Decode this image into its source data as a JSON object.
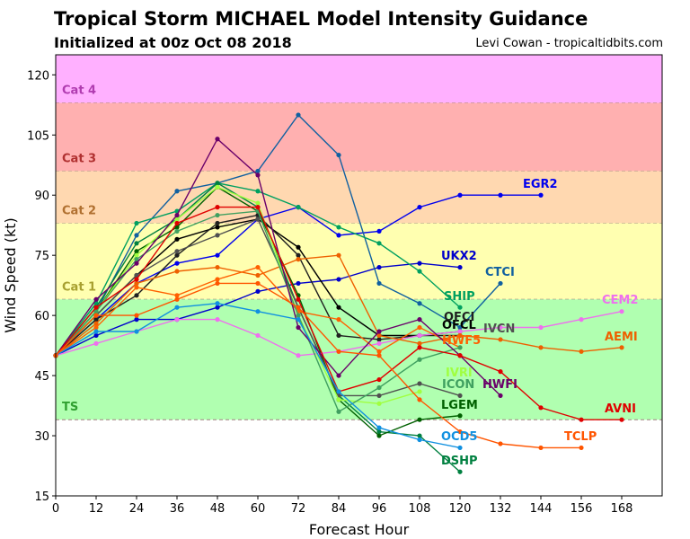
{
  "header": {
    "title": "Tropical Storm MICHAEL Model Intensity Guidance",
    "subtitle": "Initialized at 00z Oct 08 2018",
    "credit": "Levi Cowan - tropicaltidbits.com"
  },
  "chart_data": {
    "type": "line",
    "title": "Tropical Storm MICHAEL Model Intensity Guidance",
    "subtitle": "Initialized at 00z Oct 08 2018",
    "xlabel": "Forecast Hour",
    "ylabel": "Wind Speed (kt)",
    "xlim": [
      0,
      180
    ],
    "ylim": [
      15,
      125
    ],
    "xticks": [
      0,
      12,
      24,
      36,
      48,
      60,
      72,
      84,
      96,
      108,
      120,
      132,
      144,
      156,
      168
    ],
    "yticks": [
      15,
      30,
      45,
      60,
      75,
      90,
      105,
      120
    ],
    "grid": false,
    "legend": "none",
    "bands": [
      {
        "name": "Cat 4",
        "y0": 113,
        "y1": 125,
        "color": "#ffb0ff",
        "label_color": "#b03cb0"
      },
      {
        "name": "Cat 3",
        "y0": 96,
        "y1": 113,
        "color": "#ffb0b0",
        "label_color": "#b03030"
      },
      {
        "name": "Cat 2",
        "y0": 83,
        "y1": 96,
        "color": "#ffd8b0",
        "label_color": "#b07030"
      },
      {
        "name": "Cat 1",
        "y0": 64,
        "y1": 83,
        "color": "#ffffb0",
        "label_color": "#a8a030"
      },
      {
        "name": "TS",
        "y0": 34,
        "y1": 64,
        "color": "#b0ffb0",
        "label_color": "#30a030"
      }
    ],
    "series": [
      {
        "name": "EGR2",
        "color": "#0000ee",
        "points": [
          [
            0,
            50
          ],
          [
            12,
            59
          ],
          [
            24,
            68
          ],
          [
            36,
            73
          ],
          [
            48,
            75
          ],
          [
            60,
            84
          ],
          [
            72,
            87
          ],
          [
            84,
            80
          ],
          [
            96,
            81
          ],
          [
            108,
            87
          ],
          [
            120,
            90
          ],
          [
            132,
            90
          ],
          [
            144,
            90
          ]
        ]
      },
      {
        "name": "UKX2",
        "color": "#0000cc",
        "points": [
          [
            0,
            50
          ],
          [
            12,
            55
          ],
          [
            24,
            59
          ],
          [
            36,
            59
          ],
          [
            48,
            62
          ],
          [
            60,
            66
          ],
          [
            72,
            68
          ],
          [
            84,
            69
          ],
          [
            96,
            72
          ],
          [
            108,
            73
          ],
          [
            120,
            72
          ]
        ]
      },
      {
        "name": "CTCI",
        "color": "#1060a0",
        "points": [
          [
            0,
            50
          ],
          [
            12,
            61
          ],
          [
            24,
            80
          ],
          [
            36,
            91
          ],
          [
            48,
            93
          ],
          [
            60,
            96
          ],
          [
            72,
            110
          ],
          [
            84,
            100
          ],
          [
            96,
            68
          ],
          [
            108,
            63
          ],
          [
            120,
            57
          ],
          [
            132,
            68
          ]
        ]
      },
      {
        "name": "SHIP",
        "color": "#00a060",
        "points": [
          [
            0,
            50
          ],
          [
            12,
            63
          ],
          [
            24,
            83
          ],
          [
            36,
            86
          ],
          [
            48,
            93
          ],
          [
            60,
            91
          ],
          [
            72,
            87
          ],
          [
            84,
            82
          ],
          [
            96,
            78
          ],
          [
            108,
            71
          ],
          [
            120,
            62
          ]
        ]
      },
      {
        "name": "OFCL",
        "color": "#000000",
        "points": [
          [
            0,
            50
          ],
          [
            12,
            60
          ],
          [
            24,
            70
          ],
          [
            36,
            79
          ],
          [
            48,
            82
          ],
          [
            60,
            84
          ],
          [
            72,
            77
          ],
          [
            84,
            62
          ],
          [
            96,
            55
          ],
          [
            108,
            55
          ],
          [
            120,
            56
          ]
        ]
      },
      {
        "name": "OFCI",
        "color": "#202020",
        "points": [
          [
            0,
            50
          ],
          [
            12,
            59
          ],
          [
            24,
            65
          ],
          [
            36,
            75
          ],
          [
            48,
            83
          ],
          [
            60,
            85
          ],
          [
            72,
            75
          ],
          [
            84,
            55
          ],
          [
            96,
            54
          ],
          [
            108,
            55
          ],
          [
            120,
            55
          ]
        ]
      },
      {
        "name": "DSHP",
        "color": "#008040",
        "points": [
          [
            0,
            50
          ],
          [
            12,
            62
          ],
          [
            24,
            78
          ],
          [
            36,
            84
          ],
          [
            48,
            93
          ],
          [
            60,
            87
          ],
          [
            72,
            62
          ],
          [
            84,
            40
          ],
          [
            96,
            31
          ],
          [
            108,
            30
          ],
          [
            120,
            21
          ]
        ]
      },
      {
        "name": "LGEM",
        "color": "#006000",
        "points": [
          [
            0,
            50
          ],
          [
            12,
            61
          ],
          [
            24,
            76
          ],
          [
            36,
            82
          ],
          [
            48,
            92
          ],
          [
            60,
            86
          ],
          [
            72,
            65
          ],
          [
            84,
            39
          ],
          [
            96,
            30
          ],
          [
            108,
            34
          ],
          [
            120,
            35
          ]
        ]
      },
      {
        "name": "CEM2",
        "color": "#ee70ee",
        "points": [
          [
            0,
            50
          ],
          [
            12,
            53
          ],
          [
            24,
            56
          ],
          [
            36,
            59
          ],
          [
            48,
            59
          ],
          [
            60,
            55
          ],
          [
            72,
            50
          ],
          [
            84,
            51
          ],
          [
            96,
            53
          ],
          [
            108,
            55
          ],
          [
            120,
            56
          ],
          [
            132,
            57
          ],
          [
            144,
            57
          ],
          [
            156,
            59
          ],
          [
            168,
            61
          ]
        ]
      },
      {
        "name": "IVCN",
        "color": "#505050",
        "points": [
          [
            0,
            50
          ],
          [
            12,
            60
          ],
          [
            24,
            70
          ],
          [
            36,
            76
          ],
          [
            48,
            80
          ],
          [
            60,
            84
          ],
          [
            72,
            62
          ],
          [
            84,
            40
          ],
          [
            96,
            40
          ],
          [
            108,
            43
          ],
          [
            120,
            40
          ]
        ]
      },
      {
        "name": "AEMI",
        "color": "#ee6000",
        "points": [
          [
            0,
            50
          ],
          [
            12,
            58
          ],
          [
            24,
            68
          ],
          [
            36,
            71
          ],
          [
            48,
            72
          ],
          [
            60,
            70
          ],
          [
            72,
            74
          ],
          [
            84,
            75
          ],
          [
            96,
            55
          ],
          [
            108,
            53
          ],
          [
            120,
            55
          ],
          [
            132,
            54
          ],
          [
            144,
            52
          ],
          [
            156,
            51
          ],
          [
            168,
            52
          ]
        ]
      },
      {
        "name": "HWF5",
        "color": "#ff6000",
        "points": [
          [
            0,
            50
          ],
          [
            12,
            57
          ],
          [
            24,
            67
          ],
          [
            36,
            65
          ],
          [
            48,
            69
          ],
          [
            60,
            72
          ],
          [
            72,
            61
          ],
          [
            84,
            59
          ],
          [
            96,
            51
          ],
          [
            108,
            57
          ],
          [
            120,
            52
          ]
        ]
      },
      {
        "name": "IVRI",
        "color": "#a0ff40",
        "points": [
          [
            0,
            50
          ],
          [
            12,
            61
          ],
          [
            24,
            75
          ],
          [
            36,
            84
          ],
          [
            48,
            92
          ],
          [
            60,
            88
          ],
          [
            72,
            60
          ],
          [
            84,
            39
          ],
          [
            96,
            38
          ],
          [
            108,
            41
          ]
        ]
      },
      {
        "name": "ICON",
        "color": "#40a060",
        "points": [
          [
            0,
            50
          ],
          [
            12,
            61
          ],
          [
            24,
            74
          ],
          [
            36,
            81
          ],
          [
            48,
            85
          ],
          [
            60,
            86
          ],
          [
            72,
            60
          ],
          [
            84,
            36
          ],
          [
            96,
            42
          ],
          [
            108,
            49
          ],
          [
            120,
            52
          ]
        ]
      },
      {
        "name": "HWFI",
        "color": "#6a006a",
        "points": [
          [
            0,
            50
          ],
          [
            12,
            64
          ],
          [
            24,
            73
          ],
          [
            36,
            85
          ],
          [
            48,
            104
          ],
          [
            60,
            95
          ],
          [
            72,
            57
          ],
          [
            84,
            45
          ],
          [
            96,
            56
          ],
          [
            108,
            59
          ],
          [
            120,
            50
          ],
          [
            132,
            40
          ]
        ]
      },
      {
        "name": "AVNI",
        "color": "#e00000",
        "points": [
          [
            0,
            50
          ],
          [
            12,
            62
          ],
          [
            24,
            69
          ],
          [
            36,
            83
          ],
          [
            48,
            87
          ],
          [
            60,
            87
          ],
          [
            72,
            64
          ],
          [
            84,
            41
          ],
          [
            96,
            44
          ],
          [
            108,
            52
          ],
          [
            120,
            50
          ],
          [
            132,
            46
          ],
          [
            144,
            37
          ],
          [
            156,
            34
          ],
          [
            168,
            34
          ]
        ]
      },
      {
        "name": "OCD5",
        "color": "#1090e0",
        "points": [
          [
            0,
            50
          ],
          [
            12,
            56
          ],
          [
            24,
            56
          ],
          [
            36,
            62
          ],
          [
            48,
            63
          ],
          [
            60,
            61
          ],
          [
            72,
            59
          ],
          [
            84,
            41
          ],
          [
            96,
            32
          ],
          [
            108,
            29
          ],
          [
            120,
            27
          ]
        ]
      },
      {
        "name": "TCLP",
        "color": "#ff5500",
        "points": [
          [
            0,
            50
          ],
          [
            12,
            60
          ],
          [
            24,
            60
          ],
          [
            36,
            64
          ],
          [
            48,
            68
          ],
          [
            60,
            68
          ],
          [
            72,
            62
          ],
          [
            84,
            51
          ],
          [
            96,
            50
          ],
          [
            108,
            39
          ],
          [
            120,
            31
          ],
          [
            132,
            28
          ],
          [
            144,
            27
          ],
          [
            156,
            27
          ]
        ]
      }
    ]
  }
}
